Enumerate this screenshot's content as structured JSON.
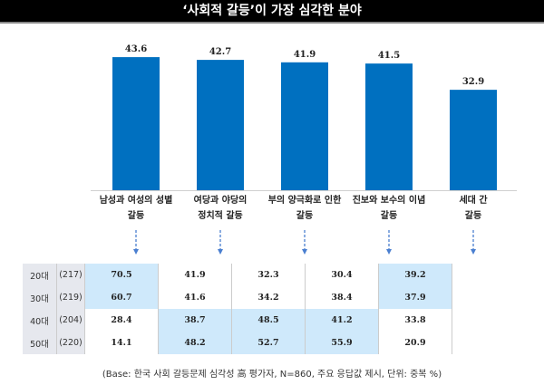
{
  "title": "‘사회적 갈등’이 가장 심각한 분야",
  "chart_data": {
    "type": "bar",
    "categories": [
      [
        "남성과 여성의 성별",
        "갈등"
      ],
      [
        "여당과 야당의",
        "정치적 갈등"
      ],
      [
        "부의 양극화로 인한",
        "갈등"
      ],
      [
        "진보와 보수의 이념",
        "갈등"
      ],
      [
        "세대 간",
        "갈등"
      ]
    ],
    "values": [
      43.6,
      42.7,
      41.9,
      41.5,
      32.9
    ],
    "value_labels": [
      "43.6",
      "42.7",
      "41.9",
      "41.5",
      "32.9"
    ],
    "bar_color": "#0070c0",
    "ylim": [
      0,
      45
    ]
  },
  "table": {
    "highlight_color": "#cfe9fb",
    "rows": [
      {
        "age": "20대",
        "n": "(217)",
        "values": [
          "70.5",
          "41.9",
          "32.3",
          "30.4",
          "39.2"
        ],
        "hl": [
          true,
          false,
          false,
          false,
          true
        ]
      },
      {
        "age": "30대",
        "n": "(219)",
        "values": [
          "60.7",
          "41.6",
          "34.2",
          "38.4",
          "37.9"
        ],
        "hl": [
          true,
          false,
          false,
          false,
          true
        ]
      },
      {
        "age": "40대",
        "n": "(204)",
        "values": [
          "28.4",
          "38.7",
          "48.5",
          "41.2",
          "33.8"
        ],
        "hl": [
          false,
          true,
          true,
          true,
          false
        ]
      },
      {
        "age": "50대",
        "n": "(220)",
        "values": [
          "14.1",
          "48.2",
          "52.7",
          "55.9",
          "20.9"
        ],
        "hl": [
          false,
          true,
          true,
          true,
          false
        ]
      }
    ]
  },
  "footnote": "(Base: 한국 사회 갈등문제 심각성 高 평가자, N=860, 주요 응답값 제시, 단위: 중복 %)"
}
